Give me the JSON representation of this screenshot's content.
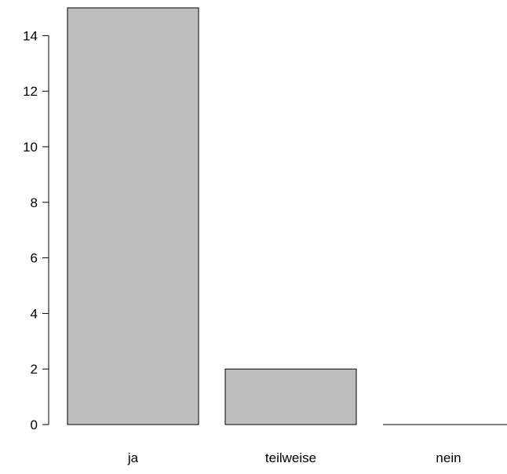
{
  "chart_data": {
    "type": "bar",
    "categories": [
      "ja",
      "teilweise",
      "nein"
    ],
    "values": [
      15,
      2,
      0
    ],
    "title": "",
    "xlabel": "",
    "ylabel": "",
    "ylim": [
      0,
      15
    ],
    "yticks": [
      0,
      2,
      4,
      6,
      8,
      10,
      12,
      14
    ],
    "grid": false,
    "bar_color": "#bebebe",
    "bar_border_color": "#000000"
  }
}
